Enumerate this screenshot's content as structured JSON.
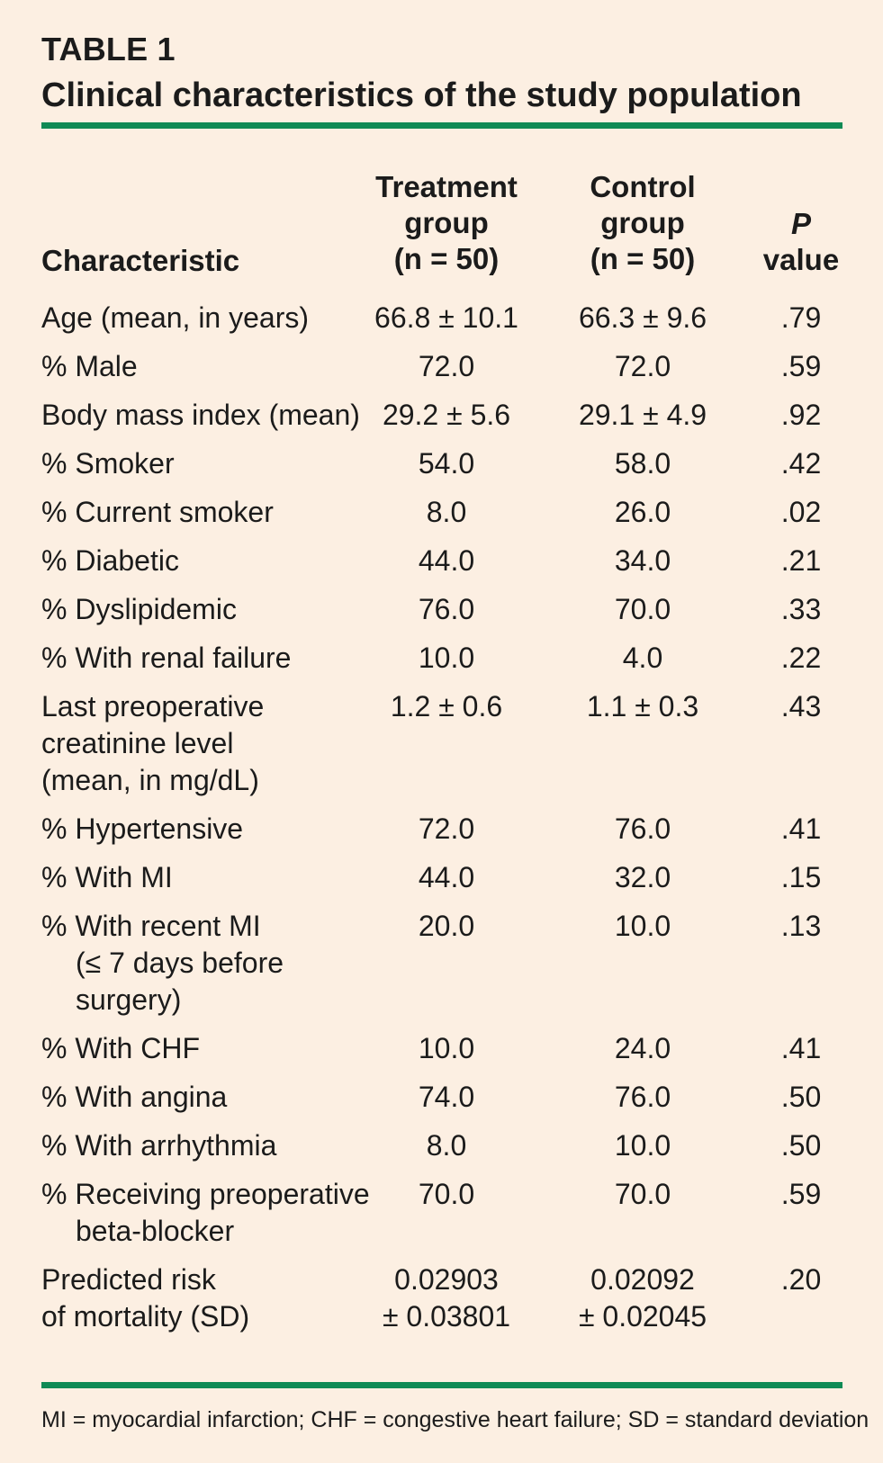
{
  "table": {
    "label": "TABLE 1",
    "title": "Clinical characteristics of the study population",
    "accent_color": "#0f8a55",
    "background_color": "#fcefe2"
  },
  "columns": {
    "characteristic": "Characteristic",
    "treatment": [
      "Treatment",
      "group",
      "(n = 50)"
    ],
    "control": [
      "Control",
      "group",
      "(n = 50)"
    ],
    "p_value": [
      "P",
      "value"
    ]
  },
  "rows": [
    {
      "characteristic": [
        "Age (mean, in years)"
      ],
      "treatment": [
        "66.8 ± 10.1"
      ],
      "control": [
        "66.3 ± 9.6"
      ],
      "p": ".79"
    },
    {
      "characteristic": [
        "% Male"
      ],
      "treatment": [
        "72.0"
      ],
      "control": [
        "72.0"
      ],
      "p": ".59"
    },
    {
      "characteristic": [
        "Body mass index (mean)"
      ],
      "treatment": [
        "29.2 ± 5.6"
      ],
      "control": [
        "29.1 ± 4.9"
      ],
      "p": ".92"
    },
    {
      "characteristic": [
        "% Smoker"
      ],
      "treatment": [
        "54.0"
      ],
      "control": [
        "58.0"
      ],
      "p": ".42"
    },
    {
      "characteristic": [
        "% Current smoker"
      ],
      "treatment": [
        "8.0"
      ],
      "control": [
        "26.0"
      ],
      "p": ".02"
    },
    {
      "characteristic": [
        "% Diabetic"
      ],
      "treatment": [
        "44.0"
      ],
      "control": [
        "34.0"
      ],
      "p": ".21"
    },
    {
      "characteristic": [
        "% Dyslipidemic"
      ],
      "treatment": [
        "76.0"
      ],
      "control": [
        "70.0"
      ],
      "p": ".33"
    },
    {
      "characteristic": [
        "% With renal failure"
      ],
      "treatment": [
        "10.0"
      ],
      "control": [
        "4.0"
      ],
      "p": ".22"
    },
    {
      "characteristic": [
        "Last preoperative",
        "creatinine level",
        "(mean, in mg/dL)"
      ],
      "treatment": [
        "1.2 ± 0.6"
      ],
      "control": [
        "1.1 ± 0.3"
      ],
      "p": ".43",
      "indent_continuation": false
    },
    {
      "characteristic": [
        "% Hypertensive"
      ],
      "treatment": [
        "72.0"
      ],
      "control": [
        "76.0"
      ],
      "p": ".41"
    },
    {
      "characteristic": [
        "% With MI"
      ],
      "treatment": [
        "44.0"
      ],
      "control": [
        "32.0"
      ],
      "p": ".15"
    },
    {
      "characteristic": [
        "% With recent MI",
        "(≤ 7 days before",
        "surgery)"
      ],
      "treatment": [
        "20.0"
      ],
      "control": [
        "10.0"
      ],
      "p": ".13",
      "indent_continuation": true
    },
    {
      "characteristic": [
        "% With CHF"
      ],
      "treatment": [
        "10.0"
      ],
      "control": [
        "24.0"
      ],
      "p": ".41"
    },
    {
      "characteristic": [
        "% With angina"
      ],
      "treatment": [
        "74.0"
      ],
      "control": [
        "76.0"
      ],
      "p": ".50"
    },
    {
      "characteristic": [
        "% With arrhythmia"
      ],
      "treatment": [
        "8.0"
      ],
      "control": [
        "10.0"
      ],
      "p": ".50"
    },
    {
      "characteristic": [
        "% Receiving preoperative",
        "beta-blocker"
      ],
      "treatment": [
        "70.0"
      ],
      "control": [
        "70.0"
      ],
      "p": ".59",
      "indent_continuation": true
    },
    {
      "characteristic": [
        "Predicted risk",
        "of mortality (SD)"
      ],
      "treatment": [
        "0.02903",
        "± 0.03801"
      ],
      "control": [
        "0.02092",
        "± 0.02045"
      ],
      "p": ".20",
      "indent_continuation": false
    }
  ],
  "footnote": "MI = myocardial infarction; CHF = congestive heart failure; SD = standard deviation"
}
